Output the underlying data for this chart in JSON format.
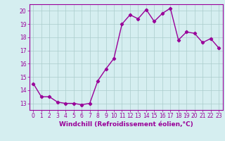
{
  "x": [
    0,
    1,
    2,
    3,
    4,
    5,
    6,
    7,
    8,
    9,
    10,
    11,
    12,
    13,
    14,
    15,
    16,
    17,
    18,
    19,
    20,
    21,
    22,
    23
  ],
  "y": [
    14.5,
    13.5,
    13.5,
    13.1,
    13.0,
    13.0,
    12.9,
    13.0,
    14.7,
    15.6,
    16.4,
    19.0,
    19.7,
    19.4,
    20.1,
    19.2,
    19.8,
    20.2,
    17.8,
    18.4,
    18.3,
    17.6,
    17.9,
    17.2
  ],
  "line_color": "#990099",
  "marker": "D",
  "markersize": 2.2,
  "linewidth": 1.0,
  "xlabel": "Windchill (Refroidissement éolien,°C)",
  "xlabel_fontsize": 6.5,
  "xlim": [
    -0.5,
    23.5
  ],
  "ylim": [
    12.5,
    20.5
  ],
  "yticks": [
    13,
    14,
    15,
    16,
    17,
    18,
    19,
    20
  ],
  "xticks": [
    0,
    1,
    2,
    3,
    4,
    5,
    6,
    7,
    8,
    9,
    10,
    11,
    12,
    13,
    14,
    15,
    16,
    17,
    18,
    19,
    20,
    21,
    22,
    23
  ],
  "tick_fontsize": 5.5,
  "background_color": "#d5eef0",
  "grid_color": "#aacccc",
  "label_color": "#990099",
  "spine_color": "#990099"
}
